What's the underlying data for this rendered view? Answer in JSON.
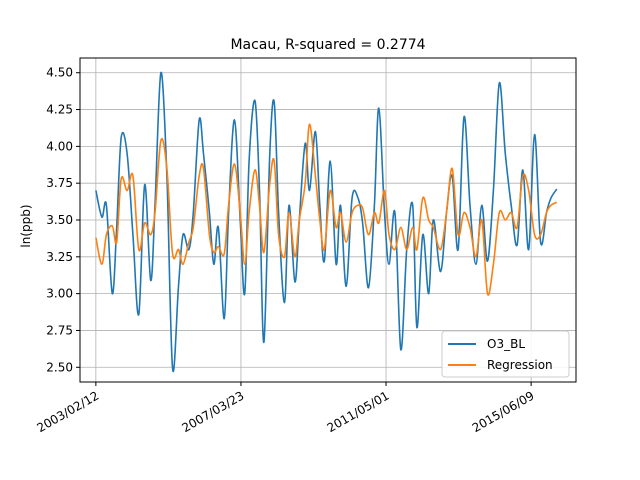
{
  "chart_data": {
    "type": "line",
    "title": "Macau, R-squared = 0.2774",
    "xlabel": "",
    "ylabel": "ln(ppb)",
    "xlim": [
      "2002-09-01",
      "2016-09-15"
    ],
    "ylim": [
      2.4,
      4.6
    ],
    "x_ticks": [
      "2003/02/12",
      "2007/03/23",
      "2011/05/01",
      "2015/06/09"
    ],
    "y_ticks": [
      2.5,
      2.75,
      3.0,
      3.25,
      3.5,
      3.75,
      4.0,
      4.25,
      4.5
    ],
    "grid": true,
    "legend_position": "lower-right",
    "colors": {
      "O3_BL": "#1f77b4",
      "Regression": "#ff7f0e"
    },
    "series": [
      {
        "name": "O3_BL",
        "x": [
          "2003-02-12",
          "2003-04-15",
          "2003-06-01",
          "2003-08-01",
          "2003-09-15",
          "2003-11-01",
          "2004-01-01",
          "2004-03-01",
          "2004-05-01",
          "2004-07-01",
          "2004-09-01",
          "2004-10-15",
          "2004-12-15",
          "2005-02-15",
          "2005-04-15",
          "2005-06-15",
          "2005-08-01",
          "2005-10-01",
          "2005-11-15",
          "2006-01-15",
          "2006-03-01",
          "2006-05-01",
          "2006-06-15",
          "2006-08-01",
          "2006-10-01",
          "2006-11-15",
          "2007-01-15",
          "2007-03-15",
          "2007-05-01",
          "2007-06-15",
          "2007-08-15",
          "2007-10-01",
          "2007-11-15",
          "2008-01-15",
          "2008-03-01",
          "2008-04-15",
          "2008-06-15",
          "2008-08-01",
          "2008-10-01",
          "2008-11-15",
          "2009-01-15",
          "2009-03-01",
          "2009-05-01",
          "2009-06-15",
          "2009-08-01",
          "2009-10-01",
          "2009-12-01",
          "2010-01-15",
          "2010-03-15",
          "2010-05-15",
          "2010-07-15",
          "2010-09-01",
          "2010-11-01",
          "2011-01-01",
          "2011-02-15",
          "2011-04-15",
          "2011-06-01",
          "2011-08-01",
          "2011-10-01",
          "2011-12-01",
          "2012-02-01",
          "2012-03-15",
          "2012-05-15",
          "2012-07-15",
          "2012-09-01",
          "2012-11-15",
          "2013-01-15",
          "2013-03-15",
          "2013-05-15",
          "2013-07-15",
          "2013-09-15",
          "2013-11-15",
          "2014-01-15",
          "2014-03-15",
          "2014-05-15",
          "2014-07-15",
          "2014-09-15",
          "2014-11-15",
          "2015-01-15",
          "2015-03-15",
          "2015-05-15",
          "2015-07-15",
          "2015-09-15",
          "2015-11-15",
          "2016-01-01",
          "2016-03-01"
        ],
        "values": [
          3.7,
          3.52,
          3.6,
          3.0,
          3.45,
          4.06,
          3.95,
          3.4,
          2.86,
          3.74,
          3.09,
          3.6,
          4.5,
          3.8,
          2.49,
          3.05,
          3.4,
          3.3,
          3.55,
          4.18,
          3.95,
          3.55,
          3.2,
          3.45,
          2.83,
          3.55,
          4.18,
          3.5,
          3.0,
          3.9,
          4.31,
          3.7,
          2.67,
          3.95,
          4.3,
          3.55,
          2.94,
          3.6,
          3.08,
          3.5,
          4.02,
          3.7,
          4.1,
          3.6,
          3.22,
          3.9,
          3.2,
          3.6,
          3.05,
          3.65,
          3.65,
          3.48,
          3.04,
          3.6,
          4.26,
          3.55,
          3.2,
          3.55,
          2.62,
          3.3,
          3.6,
          2.77,
          3.4,
          3.0,
          3.5,
          3.15,
          3.55,
          3.8,
          3.3,
          4.2,
          3.6,
          3.2,
          3.6,
          3.22,
          3.7,
          4.43,
          3.95,
          3.6,
          3.33,
          3.84,
          3.3,
          4.08,
          3.35,
          3.55,
          3.65,
          3.71
        ]
      },
      {
        "name": "Regression",
        "x": [
          "2003-02-12",
          "2003-04-15",
          "2003-06-01",
          "2003-08-01",
          "2003-09-15",
          "2003-11-01",
          "2004-01-01",
          "2004-03-01",
          "2004-05-01",
          "2004-07-01",
          "2004-09-01",
          "2004-10-15",
          "2004-12-15",
          "2005-02-15",
          "2005-04-15",
          "2005-06-15",
          "2005-08-01",
          "2005-10-01",
          "2005-11-15",
          "2006-01-15",
          "2006-03-01",
          "2006-05-01",
          "2006-06-15",
          "2006-08-01",
          "2006-10-01",
          "2006-11-15",
          "2007-01-15",
          "2007-03-15",
          "2007-05-01",
          "2007-06-15",
          "2007-08-15",
          "2007-10-01",
          "2007-11-15",
          "2008-01-15",
          "2008-03-01",
          "2008-04-15",
          "2008-06-15",
          "2008-08-01",
          "2008-10-01",
          "2008-11-15",
          "2009-01-15",
          "2009-03-01",
          "2009-05-01",
          "2009-06-15",
          "2009-08-01",
          "2009-10-01",
          "2009-12-01",
          "2010-01-15",
          "2010-03-15",
          "2010-05-15",
          "2010-07-15",
          "2010-09-01",
          "2010-11-01",
          "2011-01-01",
          "2011-02-15",
          "2011-04-15",
          "2011-06-01",
          "2011-08-01",
          "2011-10-01",
          "2011-12-01",
          "2012-02-01",
          "2012-03-15",
          "2012-05-15",
          "2012-07-15",
          "2012-09-01",
          "2012-11-15",
          "2013-01-15",
          "2013-03-15",
          "2013-05-15",
          "2013-07-15",
          "2013-09-15",
          "2013-11-15",
          "2014-01-15",
          "2014-03-15",
          "2014-05-15",
          "2014-07-15",
          "2014-09-15",
          "2014-11-15",
          "2015-01-15",
          "2015-03-15",
          "2015-05-15",
          "2015-07-15",
          "2015-09-15",
          "2015-11-15",
          "2016-01-01",
          "2016-03-01"
        ],
        "values": [
          3.38,
          3.2,
          3.4,
          3.46,
          3.35,
          3.78,
          3.7,
          3.8,
          3.3,
          3.48,
          3.4,
          3.55,
          4.04,
          3.85,
          3.27,
          3.3,
          3.2,
          3.35,
          3.45,
          3.8,
          3.85,
          3.4,
          3.28,
          3.32,
          3.27,
          3.6,
          3.88,
          3.55,
          3.2,
          3.55,
          3.84,
          3.6,
          3.28,
          3.75,
          3.9,
          3.4,
          3.25,
          3.55,
          3.25,
          3.5,
          3.75,
          4.15,
          3.8,
          3.5,
          3.3,
          3.7,
          3.45,
          3.55,
          3.35,
          3.55,
          3.6,
          3.58,
          3.4,
          3.55,
          3.48,
          3.7,
          3.4,
          3.3,
          3.45,
          3.3,
          3.45,
          3.3,
          3.65,
          3.5,
          3.45,
          3.3,
          3.55,
          3.85,
          3.4,
          3.55,
          3.45,
          3.25,
          3.5,
          3.0,
          3.2,
          3.55,
          3.5,
          3.55,
          3.45,
          3.8,
          3.7,
          3.4,
          3.4,
          3.55,
          3.6,
          3.62
        ]
      }
    ]
  }
}
